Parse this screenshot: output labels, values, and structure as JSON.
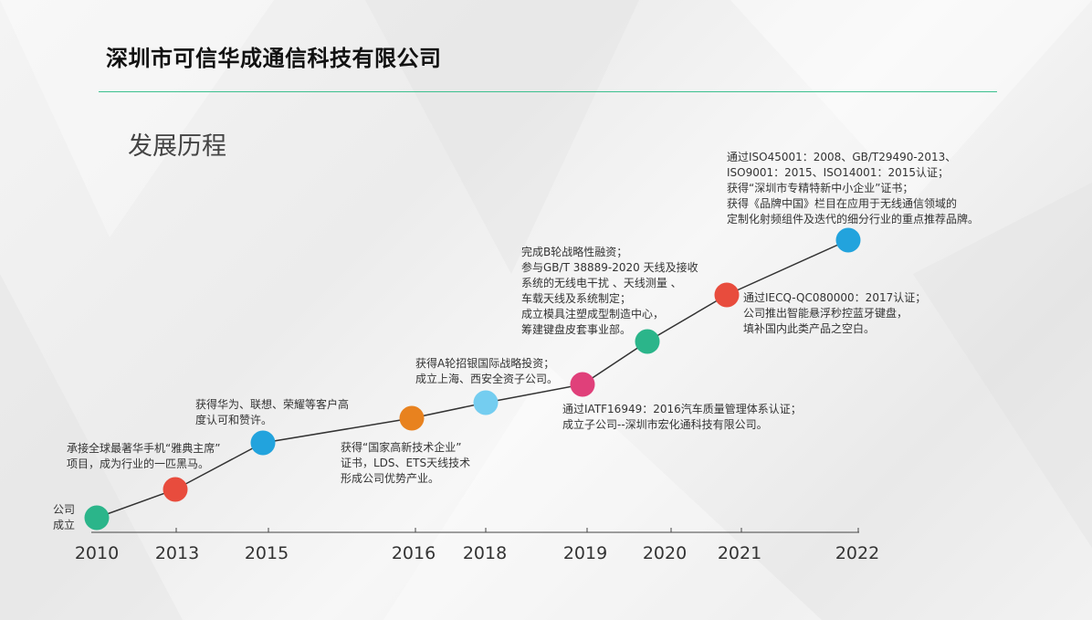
{
  "header": {
    "company": "深圳市可信华成通信科技有限公司",
    "section": "发展历程"
  },
  "colors": {
    "accent": "#3cc08e",
    "green": "#2bb58a",
    "red": "#e84c3d",
    "blue": "#22a3dd",
    "orange": "#e8821f",
    "light_blue": "#74cdf0",
    "pink": "#e0407a"
  },
  "timeline": {
    "years": [
      "2010",
      "2013",
      "2015",
      "2016",
      "2018",
      "2019",
      "2020",
      "2021",
      "2022"
    ],
    "events": [
      {
        "year": "2010",
        "text": "公司\n成立"
      },
      {
        "year": "2013",
        "text": "承接全球最著华手机“雅典主席”\n项目，成为行业的一匹黑马。"
      },
      {
        "year": "2015",
        "text": "获得华为、联想、荣耀等客户高\n度认可和赞许。"
      },
      {
        "year": "2016",
        "text": "获得“国家高新技术企业”\n证书，LDS、ETS天线技术\n形成公司优势产业。"
      },
      {
        "year": "2018",
        "text": "获得A轮招银国际战略投资；\n成立上海、西安全资子公司。"
      },
      {
        "year": "2019",
        "text": "通过IATF16949：2016汽车质量管理体系认证；\n成立子公司--深圳市宏化通科技有限公司。"
      },
      {
        "year": "2020",
        "text": "完成B轮战略性融资；\n参与GB/T 38889-2020 天线及接收\n系统的无线电干扰 、天线测量 、\n车载天线及系统制定；\n成立模具注塑成型制造中心，\n筹建键盘皮套事业部。"
      },
      {
        "year": "2021",
        "text": "通过IECQ-QC080000：2017认证；\n公司推出智能悬浮秒控蓝牙键盘，\n填补国内此类产品之空白。"
      },
      {
        "year": "2022",
        "text": "通过ISO45001：2008、GB/T29490-2013、\nISO9001：2015、ISO14001：2015认证；\n获得“深圳市专精特新中小企业”证书；\n获得《品牌中国》栏目在应用于无线通信领域的\n定制化射频组件及迭代的细分行业的重点推荐品牌。"
      }
    ]
  }
}
